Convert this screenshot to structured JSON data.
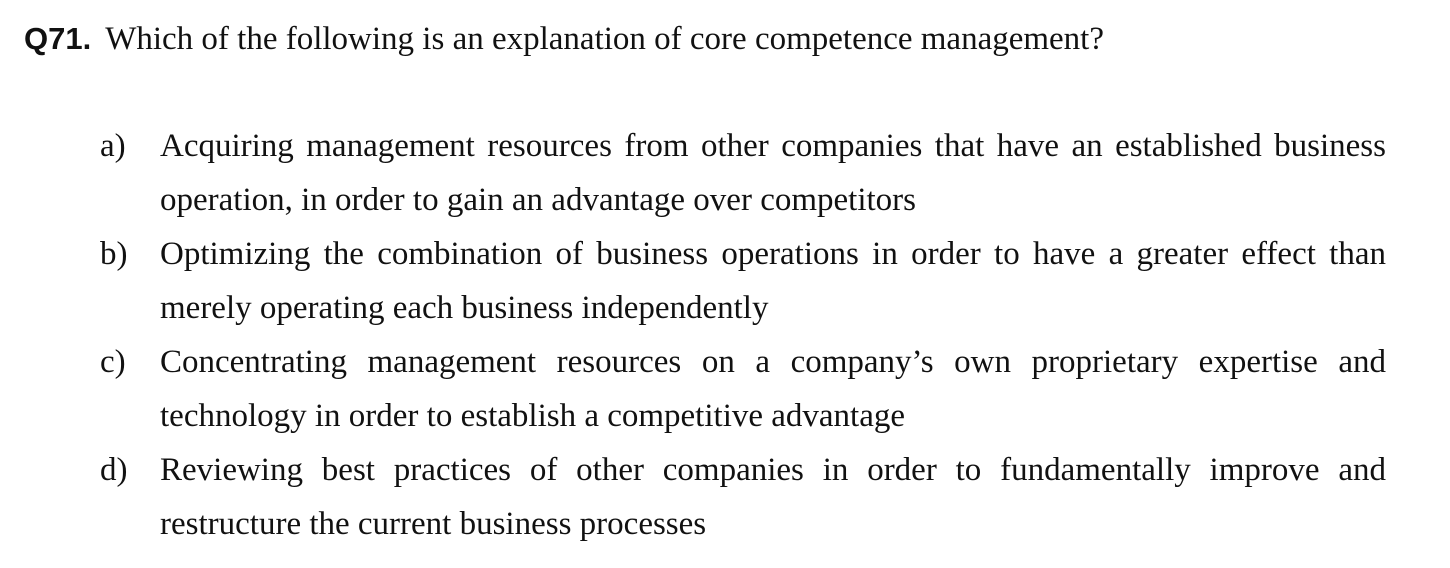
{
  "question": {
    "number": "Q71.",
    "text": "Which of the following is an explanation of core competence management?"
  },
  "choices": [
    {
      "label": "a)",
      "text": "Acquiring management resources from other companies that have an established business operation, in order to gain an advantage over competitors"
    },
    {
      "label": "b)",
      "text": "Optimizing the combination of business operations in order to have a greater effect than merely operating each business independently"
    },
    {
      "label": "c)",
      "text": "Concentrating management resources on a company’s own proprietary expertise and technology in order to establish a competitive advantage"
    },
    {
      "label": "d)",
      "text": "Reviewing best practices of other companies in order to fundamentally improve and restructure the current business processes"
    }
  ]
}
